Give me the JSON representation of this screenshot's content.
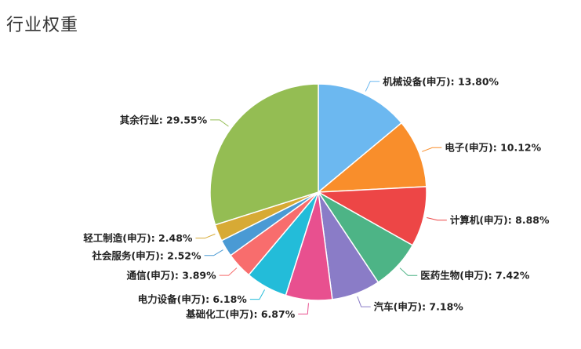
{
  "page": {
    "title": "行业权重"
  },
  "chart_data": {
    "type": "pie",
    "title": "行业权重",
    "start_angle_deg": 90,
    "direction": "clockwise",
    "slices": [
      {
        "name": "机械设备(申万)",
        "value": 13.8,
        "label": "机械设备(申万): 13.80%",
        "color": "#6cb8f0"
      },
      {
        "name": "电子(申万)",
        "value": 10.12,
        "label": "电子(申万): 10.12%",
        "color": "#f98e2b"
      },
      {
        "name": "计算机(申万)",
        "value": 8.88,
        "label": "计算机(申万): 8.88%",
        "color": "#ed4646"
      },
      {
        "name": "医药生物(申万)",
        "value": 7.42,
        "label": "医药生物(申万): 7.42%",
        "color": "#4db486"
      },
      {
        "name": "汽车(申万)",
        "value": 7.18,
        "label": "汽车(申万): 7.18%",
        "color": "#8a7cc7"
      },
      {
        "name": "基础化工(申万)",
        "value": 6.87,
        "label": "基础化工(申万): 6.87%",
        "color": "#e8508f"
      },
      {
        "name": "电力设备(申万)",
        "value": 6.18,
        "label": "电力设备(申万): 6.18%",
        "color": "#23bcd9"
      },
      {
        "name": "通信(申万)",
        "value": 3.89,
        "label": "通信(申万): 3.89%",
        "color": "#f86d6d"
      },
      {
        "name": "社会服务(申万)",
        "value": 2.52,
        "label": "社会服务(申万): 2.52%",
        "color": "#4a9ad4"
      },
      {
        "name": "轻工制造(申万)",
        "value": 2.48,
        "label": "轻工制造(申万): 2.48%",
        "color": "#d7aa35"
      },
      {
        "name": "其余行业",
        "value": 29.55,
        "label": "其余行业: 29.55%",
        "color": "#94bd53"
      }
    ]
  }
}
